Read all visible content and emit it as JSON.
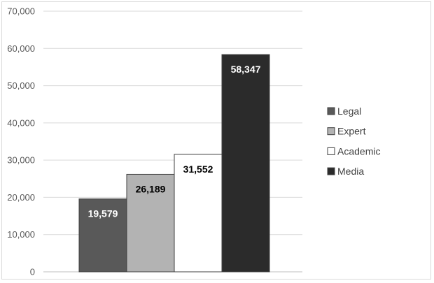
{
  "chart_data": {
    "type": "bar",
    "title": "",
    "xlabel": "",
    "ylabel": "",
    "ylim": [
      0,
      70000
    ],
    "yticks": [
      0,
      10000,
      20000,
      30000,
      40000,
      50000,
      60000,
      70000
    ],
    "ytick_labels": [
      "0",
      "10,000",
      "20,000",
      "30,000",
      "40,000",
      "50,000",
      "60,000",
      "70,000"
    ],
    "grid": true,
    "legend_position": "right",
    "series": [
      {
        "name": "Legal",
        "value": 19579,
        "label": "19,579",
        "color": "#595959",
        "label_color": "#ffffff"
      },
      {
        "name": "Expert",
        "value": 26189,
        "label": "26,189",
        "color": "#b3b3b3",
        "label_color": "#000000"
      },
      {
        "name": "Academic",
        "value": 31552,
        "label": "31,552",
        "color": "#ffffff",
        "label_color": "#000000"
      },
      {
        "name": "Media",
        "value": 58347,
        "label": "58,347",
        "color": "#2b2b2b",
        "label_color": "#ffffff"
      }
    ]
  }
}
